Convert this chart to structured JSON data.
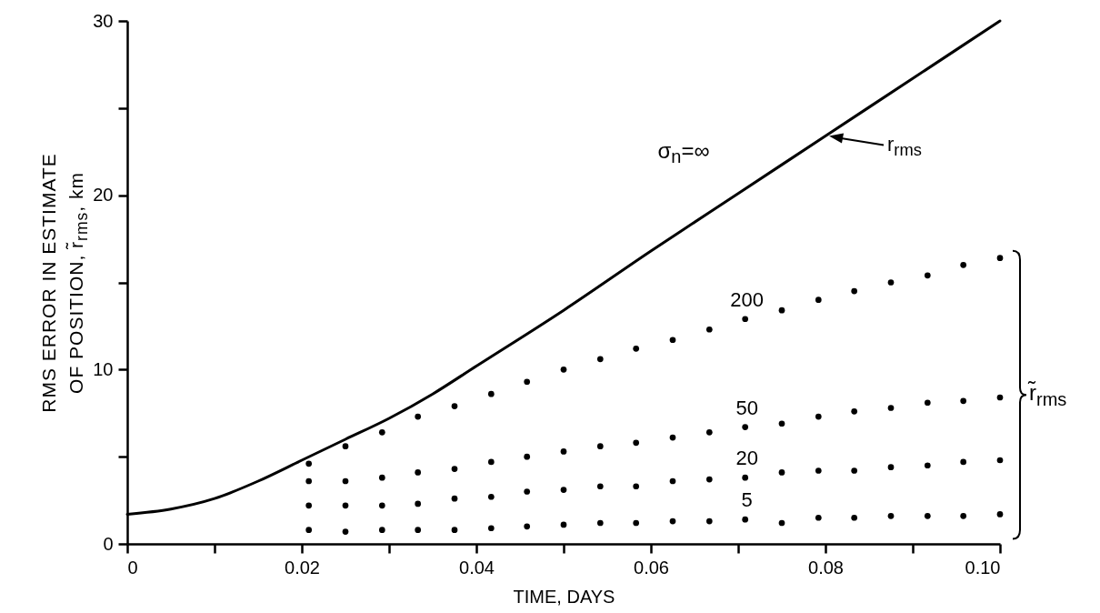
{
  "chart_data": {
    "type": "scatter",
    "xlabel": "TIME, DAYS",
    "ylabel": "RMS ERROR IN ESTIMATE\nOF POSITION, r̃$_{rms}$, km",
    "x": [
      0.0208,
      0.025,
      0.0292,
      0.0333,
      0.0375,
      0.0417,
      0.0458,
      0.05,
      0.0542,
      0.0583,
      0.0625,
      0.0667,
      0.0708,
      0.075,
      0.0792,
      0.0833,
      0.0875,
      0.0917,
      0.0958,
      0.1
    ],
    "xlim": [
      0,
      0.1
    ],
    "xticks": [
      0,
      {
        "value": 0.01,
        "label": null
      },
      0.02,
      {
        "value": 0.03,
        "label": null
      },
      0.04,
      {
        "value": 0.05,
        "label": null
      },
      0.06,
      {
        "value": 0.07,
        "label": null
      },
      0.08,
      {
        "value": 0.09,
        "label": null
      },
      {
        "value": 0.1,
        "label": "0.10"
      }
    ],
    "ylim": [
      0,
      30
    ],
    "yticks": [
      0,
      {
        "value": 5,
        "label": null
      },
      10,
      {
        "value": 15,
        "label": null
      },
      20,
      {
        "value": 25,
        "label": null
      },
      30
    ],
    "grid": false,
    "legend": false,
    "marker": "circle",
    "series": [
      {
        "type": "line",
        "marker": "none",
        "color": "#000000",
        "x": [
          0,
          0.005,
          0.01,
          0.015,
          0.02,
          0.025,
          0.03,
          0.035,
          0.04,
          0.05,
          0.06,
          0.07,
          0.08,
          0.09,
          0.1
        ],
        "values": [
          1.7,
          2.0,
          2.6,
          3.6,
          4.8,
          6.0,
          7.2,
          8.6,
          10.2,
          13.4,
          16.8,
          20.1,
          23.4,
          26.7,
          30
        ]
      },
      {
        "name": "200",
        "color": "#000000",
        "values": [
          4.6,
          5.6,
          6.4,
          7.3,
          7.9,
          8.6,
          9.3,
          10.0,
          10.6,
          11.2,
          11.7,
          12.3,
          12.9,
          13.4,
          14.0,
          14.5,
          15.0,
          15.4,
          16.0,
          16.4
        ]
      },
      {
        "name": "50",
        "color": "#000000",
        "values": [
          3.6,
          3.6,
          3.8,
          4.1,
          4.3,
          4.7,
          5.0,
          5.3,
          5.6,
          5.8,
          6.1,
          6.4,
          6.7,
          6.9,
          7.3,
          7.6,
          7.8,
          8.1,
          8.2,
          8.4
        ]
      },
      {
        "name": "20",
        "color": "#000000",
        "values": [
          2.2,
          2.2,
          2.2,
          2.3,
          2.6,
          2.7,
          3.0,
          3.1,
          3.3,
          3.3,
          3.6,
          3.7,
          3.8,
          4.1,
          4.2,
          4.2,
          4.4,
          4.5,
          4.7,
          4.8
        ]
      },
      {
        "name": "5",
        "color": "#000000",
        "values": [
          0.8,
          0.7,
          0.8,
          0.8,
          0.8,
          0.9,
          1.0,
          1.1,
          1.2,
          1.2,
          1.3,
          1.3,
          1.4,
          1.2,
          1.5,
          1.5,
          1.6,
          1.6,
          1.6,
          1.7
        ]
      }
    ],
    "annotations": [
      "σ$_{n}$=∞",
      "r$_{rms}$",
      "r̃$_{rms}$"
    ]
  }
}
